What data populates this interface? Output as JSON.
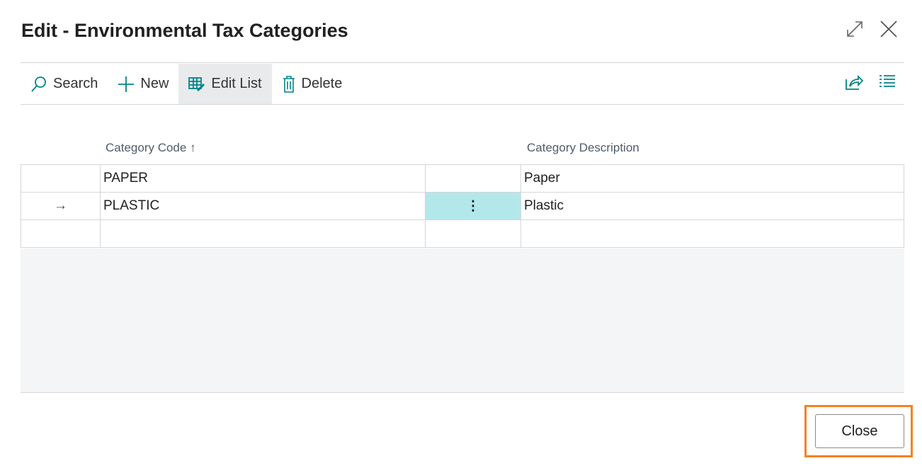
{
  "dialog": {
    "title": "Edit - Environmental Tax Categories"
  },
  "toolbar": {
    "search": "Search",
    "new": "New",
    "edit_list": "Edit List",
    "delete": "Delete"
  },
  "columns": {
    "code": "Category Code",
    "sort_indicator": "↑",
    "description": "Category Description"
  },
  "rows": [
    {
      "code": "PAPER",
      "description": "Paper",
      "current": false
    },
    {
      "code": "PLASTIC",
      "description": "Plastic",
      "current": true
    }
  ],
  "row_indicator": "→",
  "row_menu": "⋮",
  "footer": {
    "close": "Close"
  },
  "colors": {
    "accent": "#008489",
    "selected_cell": "#b3e8eb",
    "highlight": "#f5821f"
  }
}
